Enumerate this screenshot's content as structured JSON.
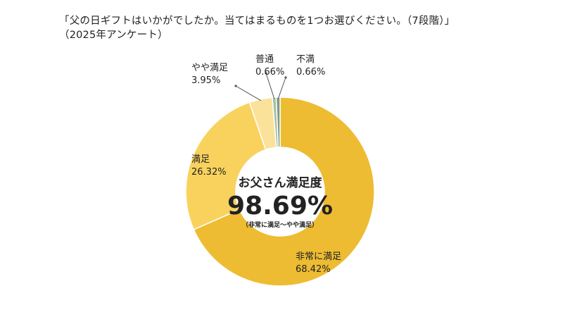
{
  "header": {
    "title": "「父の日ギフトはいかがでしたか。当てはまるものを1つお選びください。（7段階）」",
    "subtitle": "（2025年アンケート）"
  },
  "center": {
    "title": "お父さん満足度",
    "value": "98.69%",
    "note": "（非常に満足～やや満足）"
  },
  "chart_data": {
    "type": "pie",
    "title": "「父の日ギフトはいかがでしたか。当てはまるものを1つお選びください。（7段階）」",
    "subtitle": "（2025年アンケート）",
    "unit": "%",
    "categories": [
      "非常に満足",
      "満足",
      "やや満足",
      "普通",
      "不満"
    ],
    "values": [
      68.42,
      26.32,
      3.95,
      0.66,
      0.66
    ],
    "labels": [
      "68.42%",
      "26.32%",
      "3.95%",
      "0.66%",
      "0.66%"
    ],
    "colors": [
      "#EDBC32",
      "#F9D25E",
      "#FBE29A",
      "#A7C2A0",
      "#7E9A88"
    ],
    "donut": true,
    "legend": "none"
  }
}
